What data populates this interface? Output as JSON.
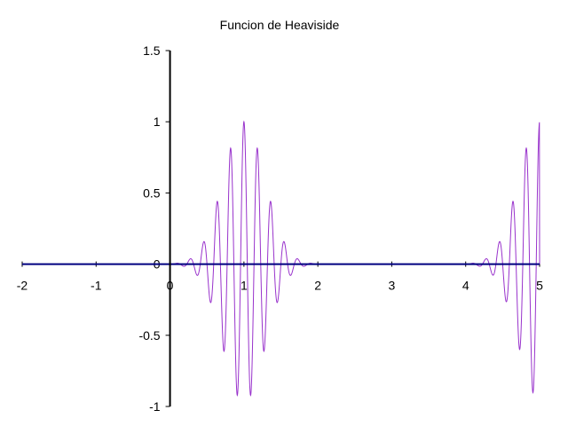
{
  "chart_data": {
    "type": "line",
    "title": "Funcion de Heaviside",
    "xlabel": "",
    "ylabel": "",
    "xlim": [
      -2,
      5
    ],
    "ylim": [
      -1,
      1.5
    ],
    "x_ticks": [
      -2,
      -1,
      0,
      1,
      2,
      3,
      4,
      5
    ],
    "x_tick_labels": [
      "-2",
      "-1",
      "0",
      "1",
      "2",
      "3",
      "4",
      "5"
    ],
    "y_ticks": [
      -1,
      -0.5,
      0,
      0.5,
      1,
      1.5
    ],
    "y_tick_labels": [
      "-1",
      "-0.5",
      "0",
      "0.5",
      "1",
      "1.5"
    ],
    "grid": false,
    "legend": "none",
    "series": [
      {
        "color": "#9933cc",
        "style": "solid",
        "segments": [
          {
            "x_start": 0,
            "x_end": 2,
            "envelope": "gaussian",
            "envelope_center": 1,
            "envelope_width": 0.4,
            "carrier": "cos",
            "carrier_frequency": 5.5,
            "peak": 1,
            "trough": -0.97
          },
          {
            "x_start": 4,
            "x_end": 5,
            "envelope": "gaussian",
            "envelope_center": 5,
            "envelope_width": 0.4,
            "carrier": "cos",
            "carrier_frequency": 5.5,
            "peak": 1,
            "trough": -0.95
          }
        ]
      }
    ],
    "axis_color": "#000000",
    "baseline_color": "#000080"
  }
}
